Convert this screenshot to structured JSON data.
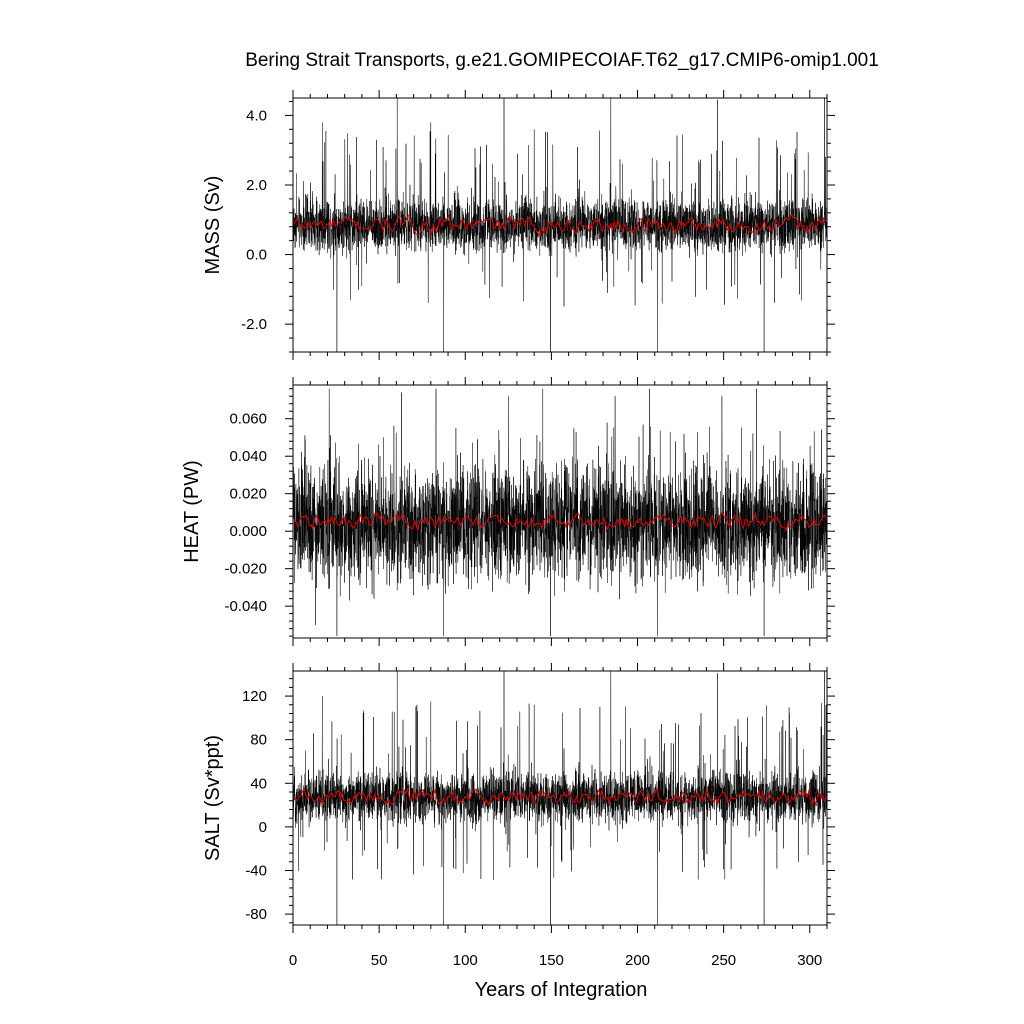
{
  "figure": {
    "title": "Bering Strait Transports, g.e21.GOMIPECOIAF.T62_g17.CMIP6-omip1.001",
    "xlabel": "Years of Integration"
  },
  "chart_data": [
    {
      "type": "line",
      "ylabel": "MASS (Sv)",
      "xlim": [
        0,
        310
      ],
      "ylim": [
        -2.8,
        4.5
      ],
      "xticks": [
        0,
        50,
        100,
        150,
        200,
        250,
        300
      ],
      "xtick_labels": [
        "0",
        "50",
        "100",
        "150",
        "200",
        "250",
        "300"
      ],
      "yticks": [
        -2.0,
        0.0,
        2.0,
        4.0
      ],
      "ytick_labels": [
        "-2.0",
        "0.0",
        "2.0",
        "4.0"
      ],
      "grid": false,
      "series": [
        {
          "role": "monthly",
          "color": "#000000",
          "mean": 0.85,
          "amp": 0.45,
          "spike_max": 4.5,
          "spike_min": -2.8
        },
        {
          "role": "annual",
          "color": "#e00000",
          "mean": 0.85,
          "range": [
            0.35,
            1.2
          ]
        }
      ],
      "peaks": [
        {
          "x": 60.5,
          "y": 4.5
        },
        {
          "x": 122.5,
          "y": 4.5
        },
        {
          "x": 184.5,
          "y": 4.5
        },
        {
          "x": 246.5,
          "y": 4.45
        },
        {
          "x": 308.5,
          "y": 4.5
        },
        {
          "x": 17,
          "y": 3.8
        },
        {
          "x": 80,
          "y": 3.8
        },
        {
          "x": 140,
          "y": 3.6
        }
      ],
      "troughs": [
        {
          "x": 25.5,
          "y": -2.8
        },
        {
          "x": 87.5,
          "y": -2.8
        },
        {
          "x": 149.5,
          "y": -2.8
        },
        {
          "x": 211.5,
          "y": -2.8
        },
        {
          "x": 273.5,
          "y": -2.8
        }
      ]
    },
    {
      "type": "line",
      "ylabel": "HEAT (PW)",
      "xlim": [
        0,
        310
      ],
      "ylim": [
        -0.057,
        0.078
      ],
      "xticks": [
        0,
        50,
        100,
        150,
        200,
        250,
        300
      ],
      "xtick_labels": [
        "0",
        "50",
        "100",
        "150",
        "200",
        "250",
        "300"
      ],
      "yticks": [
        -0.04,
        -0.02,
        0.0,
        0.02,
        0.04,
        0.06
      ],
      "ytick_labels": [
        "-0.040",
        "-0.020",
        "0.000",
        "0.020",
        "0.040",
        "0.060"
      ],
      "grid": false,
      "series": [
        {
          "role": "monthly",
          "color": "#000000",
          "mean": 0.004,
          "amp": 0.018,
          "spike_max": 0.076,
          "spike_min": -0.056
        },
        {
          "role": "annual",
          "color": "#e00000",
          "mean": 0.005,
          "range": [
            -0.002,
            0.012
          ]
        }
      ],
      "peaks": [
        {
          "x": 21,
          "y": 0.076
        },
        {
          "x": 83,
          "y": 0.076
        },
        {
          "x": 145,
          "y": 0.076
        },
        {
          "x": 207,
          "y": 0.076
        },
        {
          "x": 269,
          "y": 0.076
        },
        {
          "x": 63,
          "y": 0.074
        },
        {
          "x": 125,
          "y": 0.072
        },
        {
          "x": 187,
          "y": 0.072
        },
        {
          "x": 249,
          "y": 0.072
        }
      ],
      "troughs": [
        {
          "x": 25.5,
          "y": -0.056
        },
        {
          "x": 87.5,
          "y": -0.056
        },
        {
          "x": 149.5,
          "y": -0.056
        },
        {
          "x": 211.5,
          "y": -0.056
        },
        {
          "x": 273.5,
          "y": -0.056
        },
        {
          "x": 13,
          "y": -0.05
        }
      ]
    },
    {
      "type": "line",
      "ylabel": "SALT (Sv*ppt)",
      "xlim": [
        0,
        310
      ],
      "ylim": [
        -90,
        143
      ],
      "xticks": [
        0,
        50,
        100,
        150,
        200,
        250,
        300
      ],
      "xtick_labels": [
        "0",
        "50",
        "100",
        "150",
        "200",
        "250",
        "300"
      ],
      "yticks": [
        -80,
        -40,
        0,
        40,
        80,
        120
      ],
      "ytick_labels": [
        "-80",
        "-40",
        "0",
        "40",
        "80",
        "120"
      ],
      "grid": false,
      "series": [
        {
          "role": "monthly",
          "color": "#000000",
          "mean": 27,
          "amp": 14,
          "spike_max": 143,
          "spike_min": -90
        },
        {
          "role": "annual",
          "color": "#e00000",
          "mean": 27,
          "range": [
            15,
            40
          ]
        }
      ],
      "peaks": [
        {
          "x": 60.5,
          "y": 143
        },
        {
          "x": 122.5,
          "y": 143
        },
        {
          "x": 184.5,
          "y": 143
        },
        {
          "x": 246.5,
          "y": 141
        },
        {
          "x": 308.5,
          "y": 143
        },
        {
          "x": 17,
          "y": 120
        },
        {
          "x": 80,
          "y": 115
        },
        {
          "x": 140,
          "y": 112
        }
      ],
      "troughs": [
        {
          "x": 25.5,
          "y": -90
        },
        {
          "x": 87.5,
          "y": -90
        },
        {
          "x": 149.5,
          "y": -90
        },
        {
          "x": 211.5,
          "y": -90
        },
        {
          "x": 273.5,
          "y": -90
        }
      ]
    }
  ]
}
